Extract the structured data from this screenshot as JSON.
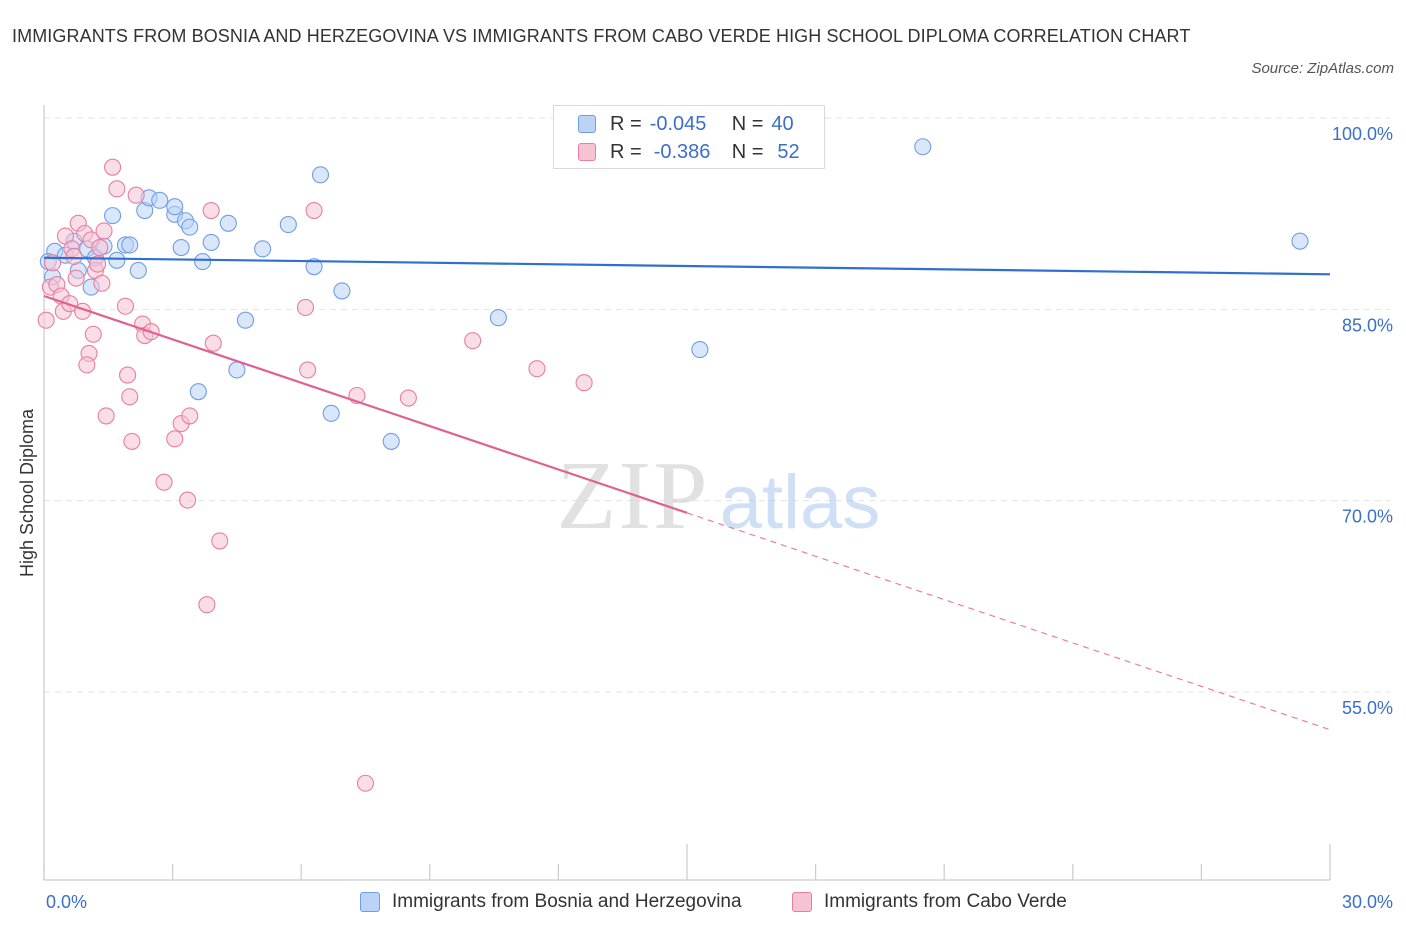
{
  "title": "IMMIGRANTS FROM BOSNIA AND HERZEGOVINA VS IMMIGRANTS FROM CABO VERDE HIGH SCHOOL DIPLOMA CORRELATION CHART",
  "source": "Source: ZipAtlas.com",
  "watermark": {
    "zip": "ZIP",
    "atlas": "atlas"
  },
  "legend": {
    "rows": [
      {
        "r_label": "R =",
        "r_value": "-0.045",
        "n_label": "N =",
        "n_value": "40"
      },
      {
        "r_label": "R =",
        "r_value": "-0.386",
        "n_label": "N =",
        "n_value": "52"
      }
    ]
  },
  "chart_data": {
    "type": "scatter",
    "title": "IMMIGRANTS FROM BOSNIA AND HERZEGOVINA VS IMMIGRANTS FROM CABO VERDE HIGH SCHOOL DIPLOMA CORRELATION CHART",
    "xlabel": "",
    "ylabel": "High School Diploma",
    "xlim": [
      0,
      30
    ],
    "ylim": [
      40,
      102
    ],
    "x_ticks": [
      {
        "value": 0,
        "label": "0.0%"
      },
      {
        "value": 30,
        "label": "30.0%"
      }
    ],
    "y_ticks": [
      {
        "value": 100,
        "label": "100.0%"
      },
      {
        "value": 85,
        "label": "85.0%"
      },
      {
        "value": 70,
        "label": "70.0%"
      },
      {
        "value": 55,
        "label": "55.0%"
      }
    ],
    "grid": true,
    "legend_position": "bottom",
    "series": [
      {
        "name": "Immigrants from Bosnia and Herzegovina",
        "color": "#6f9ee3",
        "fill": "#bcd3f5",
        "R": -0.045,
        "N": 40,
        "trend": {
          "x": [
            0,
            30
          ],
          "y": [
            90.3,
            89.0
          ]
        },
        "points": [
          [
            0.2,
            88.8
          ],
          [
            0.25,
            90.8
          ],
          [
            0.5,
            90.5
          ],
          [
            0.7,
            91.6
          ],
          [
            0.8,
            89.3
          ],
          [
            1.0,
            91.0
          ],
          [
            1.1,
            88.0
          ],
          [
            1.2,
            90.3
          ],
          [
            1.4,
            91.2
          ],
          [
            1.6,
            93.6
          ],
          [
            1.7,
            90.1
          ],
          [
            1.9,
            91.3
          ],
          [
            2.0,
            91.3
          ],
          [
            2.2,
            89.3
          ],
          [
            2.35,
            94.0
          ],
          [
            2.45,
            95.0
          ],
          [
            2.7,
            94.8
          ],
          [
            3.05,
            93.7
          ],
          [
            3.05,
            94.3
          ],
          [
            3.2,
            91.1
          ],
          [
            3.3,
            93.2
          ],
          [
            3.4,
            92.7
          ],
          [
            3.7,
            90.0
          ],
          [
            3.6,
            79.8
          ],
          [
            3.9,
            91.5
          ],
          [
            4.3,
            93.0
          ],
          [
            4.5,
            81.5
          ],
          [
            4.7,
            85.4
          ],
          [
            5.1,
            91.0
          ],
          [
            5.7,
            92.9
          ],
          [
            6.3,
            89.6
          ],
          [
            6.45,
            96.8
          ],
          [
            6.7,
            78.1
          ],
          [
            6.95,
            87.7
          ],
          [
            8.1,
            75.9
          ],
          [
            10.6,
            85.6
          ],
          [
            15.3,
            83.1
          ],
          [
            20.5,
            99.0
          ],
          [
            29.3,
            91.6
          ],
          [
            0.1,
            90.0
          ]
        ]
      },
      {
        "name": "Immigrants from Cabo Verde",
        "color": "#e87ea2",
        "fill": "#f6c3d3",
        "R": -0.386,
        "N": 52,
        "trend": {
          "x": [
            0,
            15
          ],
          "y": [
            87.3,
            70.3
          ]
        },
        "trend_extension": {
          "x": [
            15,
            30
          ],
          "y": [
            70.3,
            53.3
          ]
        },
        "points": [
          [
            0.05,
            85.4
          ],
          [
            0.15,
            88.0
          ],
          [
            0.2,
            89.9
          ],
          [
            0.3,
            88.2
          ],
          [
            0.4,
            87.3
          ],
          [
            0.45,
            86.1
          ],
          [
            0.5,
            92.0
          ],
          [
            0.6,
            86.7
          ],
          [
            0.65,
            91.0
          ],
          [
            0.7,
            90.4
          ],
          [
            0.75,
            88.7
          ],
          [
            0.8,
            93.0
          ],
          [
            0.9,
            86.1
          ],
          [
            0.95,
            92.2
          ],
          [
            1.05,
            82.8
          ],
          [
            1.0,
            81.9
          ],
          [
            1.1,
            91.7
          ],
          [
            1.15,
            84.3
          ],
          [
            1.2,
            89.3
          ],
          [
            1.25,
            89.8
          ],
          [
            1.3,
            91.1
          ],
          [
            1.35,
            88.3
          ],
          [
            1.4,
            92.4
          ],
          [
            1.45,
            77.9
          ],
          [
            1.6,
            97.4
          ],
          [
            1.7,
            95.7
          ],
          [
            1.9,
            86.5
          ],
          [
            1.95,
            81.1
          ],
          [
            2.0,
            79.4
          ],
          [
            2.05,
            75.9
          ],
          [
            2.15,
            95.2
          ],
          [
            2.3,
            85.1
          ],
          [
            2.35,
            84.2
          ],
          [
            2.5,
            84.5
          ],
          [
            2.8,
            72.7
          ],
          [
            3.05,
            76.1
          ],
          [
            3.2,
            77.3
          ],
          [
            3.35,
            71.3
          ],
          [
            3.4,
            77.9
          ],
          [
            3.9,
            94.0
          ],
          [
            3.95,
            83.6
          ],
          [
            4.1,
            68.1
          ],
          [
            3.8,
            63.1
          ],
          [
            6.1,
            86.4
          ],
          [
            6.15,
            81.5
          ],
          [
            6.3,
            94.0
          ],
          [
            7.3,
            79.5
          ],
          [
            7.5,
            49.1
          ],
          [
            8.5,
            79.3
          ],
          [
            10.0,
            83.8
          ],
          [
            11.5,
            81.6
          ],
          [
            12.6,
            80.5
          ]
        ]
      }
    ]
  },
  "bottom_legend": [
    {
      "label": "Immigrants from Bosnia and Herzegovina"
    },
    {
      "label": "Immigrants from Cabo Verde"
    }
  ]
}
